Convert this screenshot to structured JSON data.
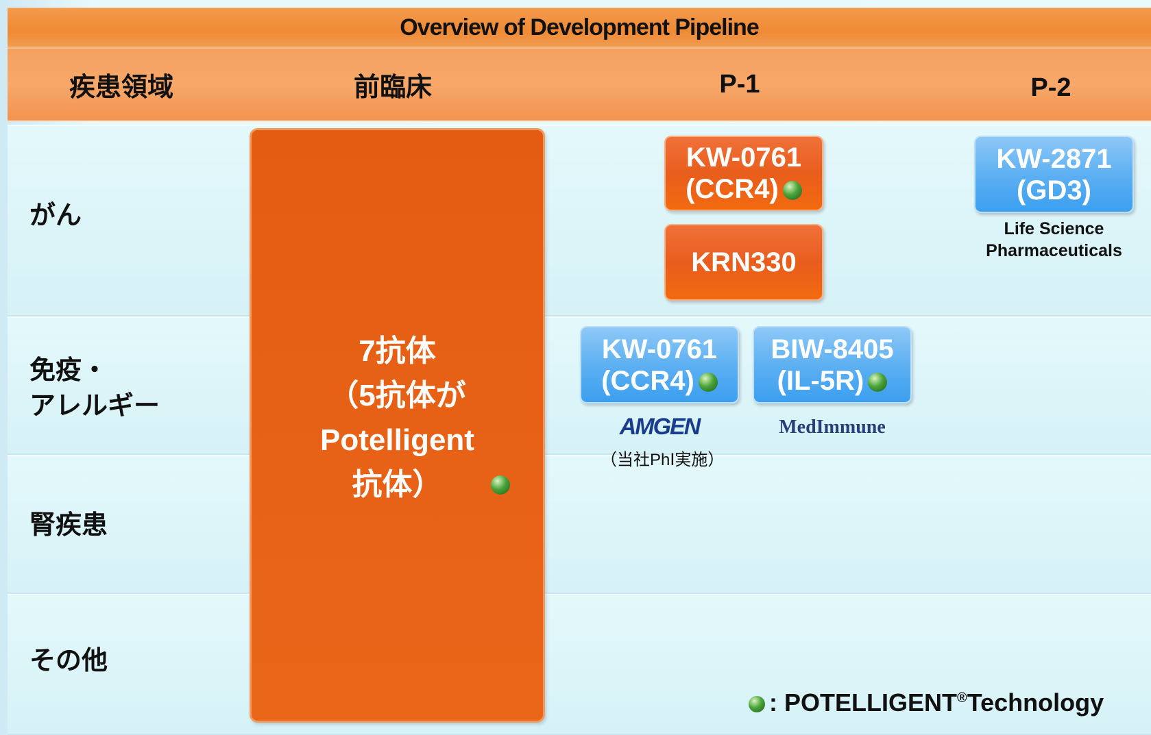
{
  "title": "Overview of Development Pipeline",
  "columns": [
    "疾患領域",
    "前臨床",
    "P-1",
    "P-2"
  ],
  "rows": [
    [
      "がん"
    ],
    [
      "免疫・",
      "アレルギー"
    ],
    [
      "腎疾患"
    ],
    [
      "その他"
    ]
  ],
  "preclinical": [
    "7抗体",
    "（5抗体が",
    "Potelligent",
    "抗体）"
  ],
  "drugs": [
    {
      "lines": [
        "KW-0761",
        "(CCR4)"
      ]
    },
    {
      "lines": [
        "KRN330"
      ]
    },
    {
      "lines": [
        "KW-2871",
        "(GD3)"
      ],
      "partner": [
        "Life Science",
        "Pharmaceuticals"
      ]
    },
    {
      "lines": [
        "KW-0761",
        "(CCR4)"
      ],
      "partner": [
        "AMGEN"
      ],
      "note": "（当社PhⅠ実施）"
    },
    {
      "lines": [
        "BIW-8405",
        "(IL-5R)"
      ],
      "partner": [
        "MedImmune"
      ]
    }
  ],
  "legend": {
    "text": ": POTELLIGENT",
    "mark": "®",
    "suffix": "Technology"
  }
}
